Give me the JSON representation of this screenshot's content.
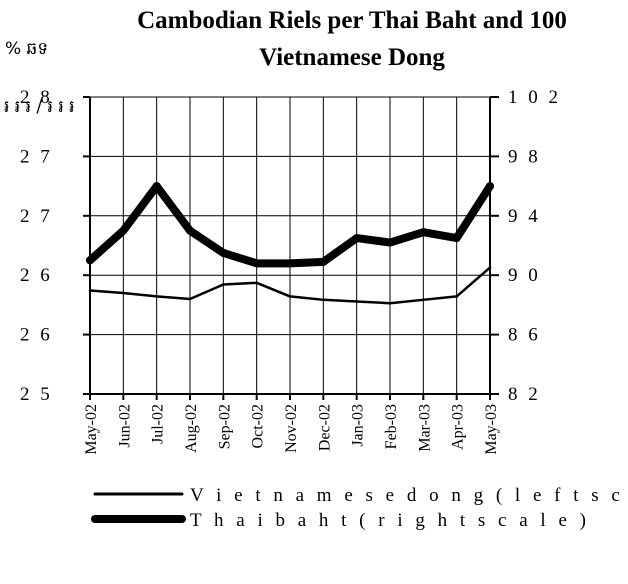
{
  "chart_data": {
    "type": "line",
    "title_line1": "Cambodian Riels per Thai Baht and 100",
    "title_line2": "Vietnamese Dong",
    "corner_mark": "% ឆទ",
    "left_unit_label": "៛ ៛ ៛ / ៛ ៛ ៛",
    "categories": [
      "May-02",
      "Jun-02",
      "Jul-02",
      "Aug-02",
      "Sep-02",
      "Oct-02",
      "Nov-02",
      "Dec-02",
      "Jan-03",
      "Feb-03",
      "Mar-03",
      "Apr-03",
      "May-03"
    ],
    "left_axis": {
      "tick_labels": [
        "2 5",
        "2 6",
        "2 6",
        "2 7",
        "2 7",
        "2 8"
      ],
      "ylim": [
        25,
        28.5
      ]
    },
    "right_axis": {
      "tick_labels": [
        "8 2",
        "8 6",
        "9 0",
        "9 4",
        "9 8",
        "1 0 2"
      ],
      "ylim": [
        82,
        102
      ]
    },
    "series": [
      {
        "name": "Vietnamese dong (left scale)",
        "axis": "left",
        "color": "#000000",
        "values": [
          26.22,
          26.19,
          26.15,
          26.12,
          26.29,
          26.31,
          26.15,
          26.11,
          26.09,
          26.07,
          26.11,
          26.15,
          26.49
        ]
      },
      {
        "name": "Thai baht (right scale)",
        "axis": "right",
        "color": "#000000",
        "values": [
          91.0,
          93.0,
          96.0,
          93.0,
          91.5,
          90.8,
          90.8,
          90.9,
          92.5,
          92.2,
          92.9,
          92.5,
          96.0
        ]
      }
    ],
    "legend": {
      "position": "bottom",
      "items": [
        "V i e t n a m e s e  d o n g  ( l e f t  s c a l e",
        "T h a i  b a h t  ( r i g h t  s c a l e )"
      ]
    },
    "grid": true
  }
}
